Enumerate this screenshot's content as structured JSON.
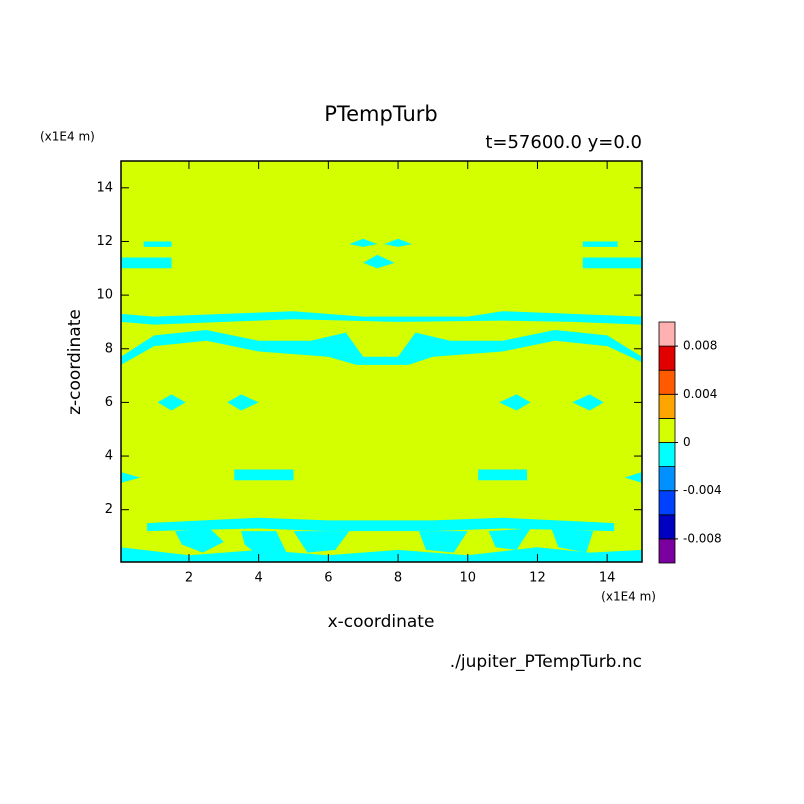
{
  "chart_data": {
    "type": "contour",
    "title": "PTempTurb",
    "subtitle": "t=57600.0 y=0.0",
    "x_label": "x-coordinate",
    "y_label": "z-coordinate",
    "x_unit": "(x1E4 m)",
    "y_unit": "(x1E4 m)",
    "footer": "./jupiter_PTempTurb.nc",
    "xlim": [
      0.05,
      15
    ],
    "ylim": [
      0.05,
      15
    ],
    "xticks": [
      2,
      4,
      6,
      8,
      10,
      12,
      14
    ],
    "yticks": [
      2,
      4,
      6,
      8,
      10,
      12,
      14
    ],
    "clim": [
      -0.01,
      0.01
    ],
    "levels": [
      -0.01,
      -0.008,
      -0.006,
      -0.004,
      -0.002,
      0,
      0.002,
      0.004,
      0.006,
      0.008,
      0.01
    ],
    "colors": [
      "#7a00a0",
      "#0000c0",
      "#0040ff",
      "#0090ff",
      "#00ffff",
      "#d4ff00",
      "#ffa500",
      "#ff5a00",
      "#e00000",
      "#ffb0b0"
    ],
    "cticks": [
      -0.008,
      -0.004,
      0,
      0.004,
      0.008
    ],
    "background": 0.001,
    "regions": [
      {
        "value": -0.001,
        "polygon": [
          [
            0.05,
            0.05
          ],
          [
            15,
            0.05
          ],
          [
            15,
            0.5
          ],
          [
            13.5,
            0.4
          ],
          [
            12,
            0.6
          ],
          [
            10,
            0.3
          ],
          [
            8,
            0.5
          ],
          [
            6,
            0.3
          ],
          [
            4,
            0.5
          ],
          [
            2,
            0.3
          ],
          [
            0.05,
            0.6
          ]
        ]
      },
      {
        "value": -0.001,
        "polygon": [
          [
            0.8,
            1.5
          ],
          [
            4,
            1.7
          ],
          [
            6,
            1.6
          ],
          [
            9,
            1.6
          ],
          [
            11,
            1.7
          ],
          [
            14.2,
            1.5
          ],
          [
            14.2,
            1.2
          ],
          [
            11,
            1.3
          ],
          [
            9,
            1.2
          ],
          [
            6,
            1.2
          ],
          [
            4,
            1.3
          ],
          [
            0.8,
            1.2
          ]
        ]
      },
      {
        "value": -0.001,
        "polygon": [
          [
            1.6,
            1.2
          ],
          [
            2.6,
            1.3
          ],
          [
            3.0,
            0.8
          ],
          [
            2.4,
            0.4
          ],
          [
            1.8,
            0.7
          ]
        ]
      },
      {
        "value": -0.001,
        "polygon": [
          [
            3.5,
            1.2
          ],
          [
            4.5,
            1.2
          ],
          [
            4.8,
            0.4
          ],
          [
            4.0,
            0.3
          ],
          [
            3.6,
            0.7
          ]
        ]
      },
      {
        "value": -0.001,
        "polygon": [
          [
            5.0,
            1.2
          ],
          [
            6.6,
            1.2
          ],
          [
            6.2,
            0.5
          ],
          [
            5.4,
            0.4
          ]
        ]
      },
      {
        "value": -0.001,
        "polygon": [
          [
            8.6,
            1.2
          ],
          [
            10.0,
            1.2
          ],
          [
            9.6,
            0.4
          ],
          [
            8.8,
            0.5
          ]
        ]
      },
      {
        "value": -0.001,
        "polygon": [
          [
            10.6,
            1.2
          ],
          [
            11.8,
            1.3
          ],
          [
            11.4,
            0.5
          ],
          [
            10.8,
            0.6
          ]
        ]
      },
      {
        "value": -0.001,
        "polygon": [
          [
            12.4,
            1.3
          ],
          [
            13.6,
            1.2
          ],
          [
            13.4,
            0.4
          ],
          [
            12.6,
            0.6
          ]
        ]
      },
      {
        "value": -0.001,
        "polygon": [
          [
            3.3,
            3.1
          ],
          [
            5.0,
            3.1
          ],
          [
            5.0,
            3.5
          ],
          [
            3.3,
            3.5
          ]
        ]
      },
      {
        "value": -0.001,
        "polygon": [
          [
            10.3,
            3.1
          ],
          [
            11.7,
            3.1
          ],
          [
            11.7,
            3.5
          ],
          [
            10.3,
            3.5
          ]
        ]
      },
      {
        "value": -0.001,
        "polygon": [
          [
            0.05,
            3.0
          ],
          [
            0.6,
            3.2
          ],
          [
            0.05,
            3.4
          ]
        ]
      },
      {
        "value": -0.001,
        "polygon": [
          [
            15,
            3.0
          ],
          [
            14.5,
            3.2
          ],
          [
            15,
            3.4
          ]
        ]
      },
      {
        "value": -0.001,
        "polygon": [
          [
            1.1,
            6.0
          ],
          [
            1.5,
            6.3
          ],
          [
            1.9,
            6.0
          ],
          [
            1.5,
            5.7
          ]
        ]
      },
      {
        "value": -0.001,
        "polygon": [
          [
            3.1,
            6.0
          ],
          [
            3.5,
            6.3
          ],
          [
            4.0,
            6.0
          ],
          [
            3.5,
            5.7
          ]
        ]
      },
      {
        "value": -0.001,
        "polygon": [
          [
            10.9,
            6.0
          ],
          [
            11.4,
            6.3
          ],
          [
            11.8,
            6.0
          ],
          [
            11.4,
            5.7
          ]
        ]
      },
      {
        "value": -0.001,
        "polygon": [
          [
            13.0,
            6.0
          ],
          [
            13.5,
            6.3
          ],
          [
            13.9,
            6.0
          ],
          [
            13.5,
            5.7
          ]
        ]
      },
      {
        "value": -0.001,
        "polygon": [
          [
            0.05,
            7.7
          ],
          [
            1,
            8.5
          ],
          [
            2.5,
            8.7
          ],
          [
            4,
            8.3
          ],
          [
            5.5,
            8.3
          ],
          [
            6.5,
            8.6
          ],
          [
            7,
            7.7
          ],
          [
            8,
            7.7
          ],
          [
            8.5,
            8.6
          ],
          [
            9.5,
            8.3
          ],
          [
            11,
            8.3
          ],
          [
            12.5,
            8.7
          ],
          [
            14,
            8.5
          ],
          [
            15,
            7.7
          ],
          [
            15,
            7.5
          ],
          [
            14,
            8.1
          ],
          [
            12.5,
            8.3
          ],
          [
            11,
            7.9
          ],
          [
            9,
            7.7
          ],
          [
            8.3,
            7.4
          ],
          [
            6.8,
            7.4
          ],
          [
            6,
            7.7
          ],
          [
            4,
            7.9
          ],
          [
            2.5,
            8.3
          ],
          [
            1,
            8.1
          ],
          [
            0.05,
            7.4
          ]
        ]
      },
      {
        "value": -0.001,
        "polygon": [
          [
            0.05,
            9.0
          ],
          [
            0.05,
            9.3
          ],
          [
            1,
            9.2
          ],
          [
            3,
            9.3
          ],
          [
            5,
            9.4
          ],
          [
            7,
            9.2
          ],
          [
            10,
            9.2
          ],
          [
            11,
            9.4
          ],
          [
            13,
            9.3
          ],
          [
            15,
            9.2
          ],
          [
            15,
            8.9
          ],
          [
            13,
            9.0
          ],
          [
            11,
            9.05
          ],
          [
            8,
            9.0
          ],
          [
            5,
            9.1
          ],
          [
            3,
            9.0
          ],
          [
            1,
            8.9
          ]
        ]
      },
      {
        "value": -0.001,
        "polygon": [
          [
            0.05,
            11.0
          ],
          [
            1.5,
            11.0
          ],
          [
            1.5,
            11.4
          ],
          [
            0.05,
            11.4
          ]
        ]
      },
      {
        "value": -0.001,
        "polygon": [
          [
            0.7,
            11.8
          ],
          [
            1.5,
            11.8
          ],
          [
            1.5,
            12.0
          ],
          [
            0.7,
            12.0
          ]
        ]
      },
      {
        "value": -0.001,
        "polygon": [
          [
            13.3,
            11.0
          ],
          [
            15,
            11.0
          ],
          [
            15,
            11.4
          ],
          [
            13.3,
            11.4
          ]
        ]
      },
      {
        "value": -0.001,
        "polygon": [
          [
            13.3,
            11.8
          ],
          [
            14.3,
            11.8
          ],
          [
            14.3,
            12.0
          ],
          [
            13.3,
            12.0
          ]
        ]
      },
      {
        "value": -0.001,
        "polygon": [
          [
            7.0,
            11.2
          ],
          [
            7.4,
            11.5
          ],
          [
            7.9,
            11.2
          ],
          [
            7.4,
            11.0
          ]
        ]
      },
      {
        "value": -0.001,
        "polygon": [
          [
            6.6,
            11.9
          ],
          [
            7.0,
            12.1
          ],
          [
            7.4,
            11.9
          ],
          [
            7.0,
            11.8
          ]
        ]
      },
      {
        "value": -0.001,
        "polygon": [
          [
            7.6,
            11.9
          ],
          [
            8.0,
            12.1
          ],
          [
            8.4,
            11.9
          ],
          [
            8.0,
            11.8
          ]
        ]
      }
    ]
  }
}
